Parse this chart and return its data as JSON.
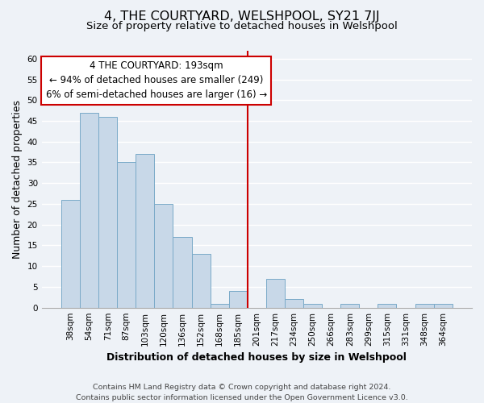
{
  "title": "4, THE COURTYARD, WELSHPOOL, SY21 7JJ",
  "subtitle": "Size of property relative to detached houses in Welshpool",
  "xlabel": "Distribution of detached houses by size in Welshpool",
  "ylabel": "Number of detached properties",
  "bar_labels": [
    "38sqm",
    "54sqm",
    "71sqm",
    "87sqm",
    "103sqm",
    "120sqm",
    "136sqm",
    "152sqm",
    "168sqm",
    "185sqm",
    "201sqm",
    "217sqm",
    "234sqm",
    "250sqm",
    "266sqm",
    "283sqm",
    "299sqm",
    "315sqm",
    "331sqm",
    "348sqm",
    "364sqm"
  ],
  "bar_values": [
    26,
    47,
    46,
    35,
    37,
    25,
    17,
    13,
    1,
    4,
    0,
    7,
    2,
    1,
    0,
    1,
    0,
    1,
    0,
    1,
    1
  ],
  "bar_color": "#c8d8e8",
  "bar_edge_color": "#7aaac8",
  "reference_line_color": "#cc0000",
  "annotation_title": "4 THE COURTYARD: 193sqm",
  "annotation_line1": "← 94% of detached houses are smaller (249)",
  "annotation_line2": "6% of semi-detached houses are larger (16) →",
  "ylim": [
    0,
    62
  ],
  "yticks": [
    0,
    5,
    10,
    15,
    20,
    25,
    30,
    35,
    40,
    45,
    50,
    55,
    60
  ],
  "footer1": "Contains HM Land Registry data © Crown copyright and database right 2024.",
  "footer2": "Contains public sector information licensed under the Open Government Licence v3.0.",
  "background_color": "#eef2f7",
  "grid_color": "#ffffff",
  "title_fontsize": 11.5,
  "subtitle_fontsize": 9.5,
  "axis_label_fontsize": 9,
  "tick_fontsize": 7.5,
  "footer_fontsize": 6.8,
  "annotation_fontsize": 8.5
}
